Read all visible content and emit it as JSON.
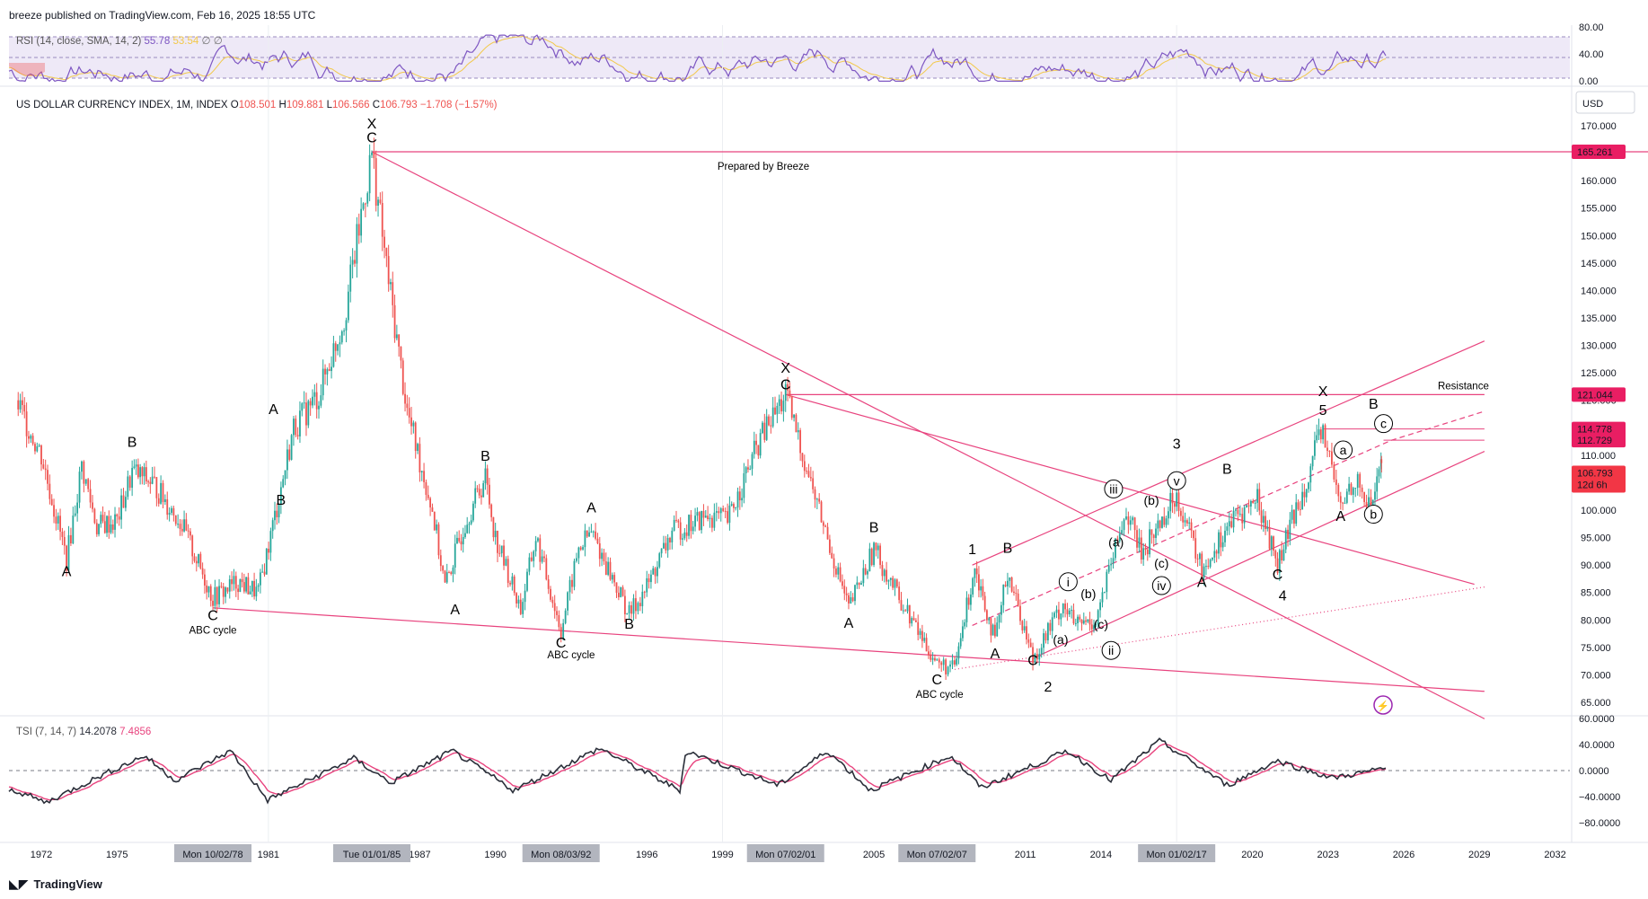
{
  "publisher": "breeze published on TradingView.com, Feb 16, 2025 18:55 UTC",
  "footer": {
    "brand": "TradingView"
  },
  "colors": {
    "up": "#26a69a",
    "down": "#ef5350",
    "lines": "#e8437e",
    "rsi": "#7e57c2",
    "rsi_ma": "#f2c94c",
    "tsi": "#2a2e39",
    "tsi_signal": "#e8437e",
    "price_tag": "#e91e63",
    "current_tag": "#f23645"
  },
  "main": {
    "legend_title": "US DOLLAR CURRENCY INDEX, 1M, INDEX",
    "ohlc": {
      "o_label": "O",
      "o": "108.501",
      "h_label": "H",
      "h": "109.881",
      "l_label": "L",
      "l": "106.566",
      "c_label": "C",
      "c": "106.793",
      "chg": "−1.708 (−1.57%)"
    },
    "currency": "USD",
    "prepared_note": "Prepared by Breeze",
    "resistance_label": "Resistance",
    "current_price": "106.793",
    "countdown": "12d 6h"
  },
  "rsi": {
    "label": "RSI (14, close, SMA, 14, 2)",
    "value": "55.78",
    "value2": "53.54",
    "extra": "∅ ∅",
    "ticks": [
      "80.00",
      "40.00",
      "0.00"
    ]
  },
  "tsi": {
    "label": "TSI (7, 14, 7)",
    "value": "14.2078",
    "signal": "7.4856",
    "ticks": [
      "60.0000",
      "40.0000",
      "0.0000",
      "−40.0000",
      "−80.0000"
    ]
  },
  "time_axis": {
    "labels": [
      "1972",
      "1975",
      "1981",
      "1987",
      "1990",
      "1996",
      "1999",
      "2005",
      "2011",
      "2014",
      "2020",
      "2023",
      "2026",
      "2029",
      "2032"
    ],
    "highlights": [
      "Mon 10/02/78",
      "Tue 01/01/85",
      "Mon 08/03/92",
      "Mon 07/02/01",
      "Mon 07/02/07",
      "Mon 01/02/17"
    ]
  },
  "chart_data": {
    "type": "candlestick",
    "title": "US DOLLAR CURRENCY INDEX, 1M, INDEX",
    "y_axis_ticks": [
      170,
      165,
      160,
      155,
      150,
      145,
      140,
      135,
      130,
      125,
      120,
      115,
      110,
      105,
      100,
      95,
      90,
      85,
      80,
      75,
      70,
      65
    ],
    "price_tags": [
      "165.261",
      "121.044",
      "114.778",
      "112.729"
    ],
    "ylim": [
      62,
      172
    ],
    "series_close": [
      {
        "x": 1971.0,
        "y": 120
      },
      {
        "x": 1972.0,
        "y": 110
      },
      {
        "x": 1973.0,
        "y": 91
      },
      {
        "x": 1973.6,
        "y": 108
      },
      {
        "x": 1974.2,
        "y": 97
      },
      {
        "x": 1975.0,
        "y": 98
      },
      {
        "x": 1975.6,
        "y": 107
      },
      {
        "x": 1976.4,
        "y": 105
      },
      {
        "x": 1977.5,
        "y": 98
      },
      {
        "x": 1978.8,
        "y": 84
      },
      {
        "x": 1979.8,
        "y": 87
      },
      {
        "x": 1980.6,
        "y": 85
      },
      {
        "x": 1981.5,
        "y": 104
      },
      {
        "x": 1982.0,
        "y": 115
      },
      {
        "x": 1983.0,
        "y": 121
      },
      {
        "x": 1984.0,
        "y": 135
      },
      {
        "x": 1985.1,
        "y": 165
      },
      {
        "x": 1985.6,
        "y": 147
      },
      {
        "x": 1986.5,
        "y": 118
      },
      {
        "x": 1987.5,
        "y": 100
      },
      {
        "x": 1988.0,
        "y": 86
      },
      {
        "x": 1988.8,
        "y": 98
      },
      {
        "x": 1989.6,
        "y": 106
      },
      {
        "x": 1990.0,
        "y": 95
      },
      {
        "x": 1991.0,
        "y": 82
      },
      {
        "x": 1991.6,
        "y": 95
      },
      {
        "x": 1992.6,
        "y": 78
      },
      {
        "x": 1993.3,
        "y": 93
      },
      {
        "x": 1993.8,
        "y": 96
      },
      {
        "x": 1995.3,
        "y": 81
      },
      {
        "x": 1996.0,
        "y": 86
      },
      {
        "x": 1997.0,
        "y": 96
      },
      {
        "x": 1998.5,
        "y": 99
      },
      {
        "x": 1999.2,
        "y": 98
      },
      {
        "x": 2000.5,
        "y": 113
      },
      {
        "x": 2001.5,
        "y": 121
      },
      {
        "x": 2002.5,
        "y": 105
      },
      {
        "x": 2004.0,
        "y": 82
      },
      {
        "x": 2005.0,
        "y": 93
      },
      {
        "x": 2006.0,
        "y": 84
      },
      {
        "x": 2007.5,
        "y": 72
      },
      {
        "x": 2008.2,
        "y": 71
      },
      {
        "x": 2009.0,
        "y": 90
      },
      {
        "x": 2009.8,
        "y": 76
      },
      {
        "x": 2010.3,
        "y": 89
      },
      {
        "x": 2011.3,
        "y": 73
      },
      {
        "x": 2012.5,
        "y": 83
      },
      {
        "x": 2013.0,
        "y": 79
      },
      {
        "x": 2013.8,
        "y": 80
      },
      {
        "x": 2015.0,
        "y": 100
      },
      {
        "x": 2015.6,
        "y": 92
      },
      {
        "x": 2017.0,
        "y": 103
      },
      {
        "x": 2018.0,
        "y": 89
      },
      {
        "x": 2019.0,
        "y": 97
      },
      {
        "x": 2020.2,
        "y": 102
      },
      {
        "x": 2021.0,
        "y": 90
      },
      {
        "x": 2022.8,
        "y": 114.8
      },
      {
        "x": 2023.5,
        "y": 100
      },
      {
        "x": 2024.0,
        "y": 106
      },
      {
        "x": 2024.7,
        "y": 100
      },
      {
        "x": 2025.1,
        "y": 109.9
      },
      {
        "x": 2025.12,
        "y": 106.8
      }
    ]
  },
  "wave_labels": {
    "major": [
      {
        "t": "X",
        "x": 1985.1,
        "y": 169.5
      },
      {
        "t": "C",
        "x": 1985.1,
        "y": 167
      },
      {
        "t": "X",
        "x": 2001.5,
        "y": 125
      },
      {
        "t": "C",
        "x": 2001.5,
        "y": 122
      },
      {
        "t": "X",
        "x": 2022.8,
        "y": 120.8
      },
      {
        "t": "5",
        "x": 2022.8,
        "y": 117.3
      },
      {
        "t": "1",
        "x": 2008.9,
        "y": 92
      },
      {
        "t": "2",
        "x": 2011.9,
        "y": 67
      },
      {
        "t": "3",
        "x": 2017.0,
        "y": 111.2
      },
      {
        "t": "4",
        "x": 2021.2,
        "y": 83.6
      }
    ],
    "minor": [
      {
        "t": "A",
        "x": 1973.0,
        "y": 88
      },
      {
        "t": "B",
        "x": 1975.6,
        "y": 111.5
      },
      {
        "t": "C",
        "x": 1978.8,
        "y": 80
      },
      {
        "t": "A",
        "x": 1981.2,
        "y": 117.5
      },
      {
        "t": "B",
        "x": 1981.5,
        "y": 101
      },
      {
        "t": "A",
        "x": 1988.4,
        "y": 81
      },
      {
        "t": "B",
        "x": 1989.6,
        "y": 109
      },
      {
        "t": "C",
        "x": 1992.6,
        "y": 75
      },
      {
        "t": "A",
        "x": 1993.8,
        "y": 99.6
      },
      {
        "t": "B",
        "x": 1995.3,
        "y": 78.4
      },
      {
        "t": "A",
        "x": 2004.0,
        "y": 78.6
      },
      {
        "t": "B",
        "x": 2005.0,
        "y": 96
      },
      {
        "t": "C",
        "x": 2007.5,
        "y": 68.3
      },
      {
        "t": "A",
        "x": 2009.8,
        "y": 73
      },
      {
        "t": "B",
        "x": 2010.3,
        "y": 92.2
      },
      {
        "t": "C",
        "x": 2011.3,
        "y": 71.8
      },
      {
        "t": "A",
        "x": 2018.0,
        "y": 86
      },
      {
        "t": "B",
        "x": 2019.0,
        "y": 106.6
      },
      {
        "t": "C",
        "x": 2021.0,
        "y": 87.4
      },
      {
        "t": "A",
        "x": 2023.5,
        "y": 98
      },
      {
        "t": "B",
        "x": 2024.8,
        "y": 118.5
      }
    ],
    "paren": [
      {
        "t": "(a)",
        "x": 2014.6,
        "y": 93.4
      },
      {
        "t": "(b)",
        "x": 2016.0,
        "y": 101
      },
      {
        "t": "(c)",
        "x": 2016.4,
        "y": 89.5
      },
      {
        "t": "(b)",
        "x": 2013.5,
        "y": 84
      },
      {
        "t": "(a)",
        "x": 2012.4,
        "y": 75.6
      },
      {
        "t": "(c)",
        "x": 2014.0,
        "y": 78.4
      }
    ],
    "circled": [
      {
        "t": "iii",
        "x": 2014.5,
        "y": 103.2
      },
      {
        "t": "v",
        "x": 2017.0,
        "y": 104.7
      },
      {
        "t": "iv",
        "x": 2016.4,
        "y": 85.6
      },
      {
        "t": "i",
        "x": 2012.7,
        "y": 86.3
      },
      {
        "t": "ii",
        "x": 2014.4,
        "y": 73.8
      },
      {
        "t": "a",
        "x": 2023.6,
        "y": 110.3
      },
      {
        "t": "b",
        "x": 2024.8,
        "y": 98.6
      },
      {
        "t": "c",
        "x": 2025.2,
        "y": 115.1
      }
    ],
    "notes": [
      {
        "t": "ABC cycle",
        "x": 1978.8,
        "y": 77.5
      },
      {
        "t": "ABC cycle",
        "x": 1993.0,
        "y": 73
      },
      {
        "t": "ABC cycle",
        "x": 2007.6,
        "y": 65.8
      }
    ]
  }
}
